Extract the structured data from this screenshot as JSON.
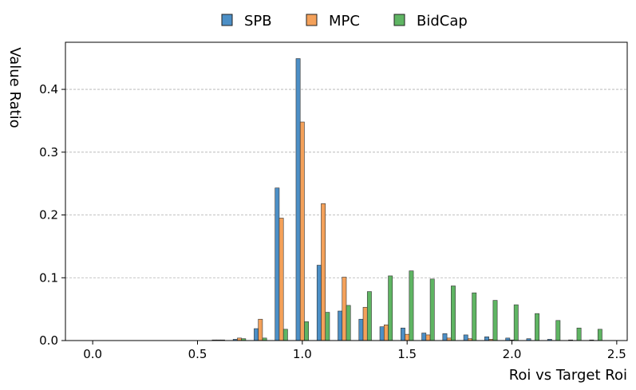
{
  "chart_data": {
    "type": "bar",
    "title": "",
    "xlabel": "Roi vs Target Roi",
    "ylabel": "Value Ratio",
    "xlim": [
      -0.13,
      2.55
    ],
    "ylim": [
      0,
      0.475
    ],
    "xticks": [
      0.0,
      0.5,
      1.0,
      1.5,
      2.0,
      2.5
    ],
    "xtick_labels": [
      "0.0",
      "0.5",
      "1.0",
      "1.5",
      "2.0",
      "2.5"
    ],
    "yticks": [
      0.0,
      0.1,
      0.2,
      0.3,
      0.4
    ],
    "ytick_labels": [
      "0.0",
      "0.1",
      "0.2",
      "0.3",
      "0.4"
    ],
    "grid": "horizontal",
    "legend": "top-center",
    "bin_width": 0.1,
    "bar_width": 0.02,
    "x": [
      0.0,
      0.1,
      0.2,
      0.3,
      0.4,
      0.5,
      0.6,
      0.7,
      0.8,
      0.9,
      1.0,
      1.1,
      1.2,
      1.3,
      1.4,
      1.5,
      1.6,
      1.7,
      1.8,
      1.9,
      2.0,
      2.1,
      2.2,
      2.3,
      2.4
    ],
    "series": [
      {
        "name": "SPB",
        "color": "#4c8fc6",
        "offset": -0.02,
        "values": [
          0.0,
          0.0,
          0.0,
          0.0,
          0.0,
          0.0,
          0.001,
          0.002,
          0.019,
          0.243,
          0.449,
          0.12,
          0.047,
          0.034,
          0.022,
          0.02,
          0.012,
          0.011,
          0.009,
          0.006,
          0.004,
          0.003,
          0.002,
          0.001,
          0.001
        ]
      },
      {
        "name": "MPC",
        "color": "#f4a15a",
        "offset": 0.0,
        "values": [
          0.0,
          0.0,
          0.0,
          0.0,
          0.0,
          0.0,
          0.001,
          0.004,
          0.034,
          0.195,
          0.348,
          0.218,
          0.101,
          0.053,
          0.025,
          0.01,
          0.009,
          0.004,
          0.003,
          0.002,
          0.001,
          0.0,
          0.0,
          0.0,
          0.0
        ]
      },
      {
        "name": "BidCap",
        "color": "#5fb563",
        "offset": 0.02,
        "values": [
          0.0,
          0.0,
          0.0,
          0.0,
          0.0,
          0.0,
          0.001,
          0.003,
          0.004,
          0.018,
          0.03,
          0.045,
          0.056,
          0.078,
          0.103,
          0.111,
          0.098,
          0.087,
          0.076,
          0.064,
          0.057,
          0.043,
          0.032,
          0.02,
          0.018
        ]
      }
    ]
  }
}
